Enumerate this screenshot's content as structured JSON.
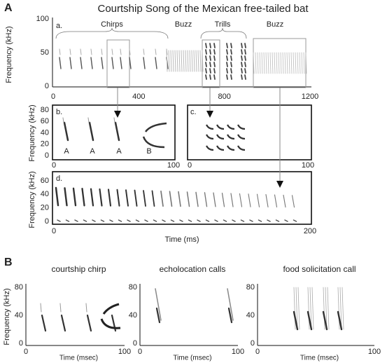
{
  "panel_a": {
    "label": "A",
    "title": "Courtship Song of the Mexican free-tailed bat",
    "overview": {
      "sublabel": "a.",
      "y_label": "Frequency (kHz)",
      "y_ticks": [
        0,
        50,
        100
      ],
      "x_ticks": [
        0,
        400,
        800,
        1200
      ],
      "segments": [
        "Chirps",
        "Buzz",
        "Trills",
        "Buzz"
      ]
    },
    "chirps": {
      "sublabel": "b.",
      "y_label": "Frequency (kHz)",
      "y_ticks": [
        0,
        20,
        40,
        60,
        80
      ],
      "x_ticks": [
        0,
        100
      ],
      "syllables": [
        "A",
        "A",
        "A",
        "B"
      ]
    },
    "trills": {
      "sublabel": "c.",
      "x_ticks": [
        0,
        100
      ]
    },
    "buzz": {
      "sublabel": "d.",
      "y_label": "Frequency (kHz)",
      "y_ticks": [
        0,
        20,
        40,
        60
      ],
      "x_ticks": [
        0,
        200
      ],
      "x_label": "Time (ms)"
    }
  },
  "panel_b": {
    "label": "B",
    "y_label": "Frequency (kHz)",
    "plots": [
      {
        "title": "courtship chirp",
        "y_ticks": [
          0,
          40,
          80
        ],
        "x_ticks": [
          0,
          100
        ],
        "x_label": "Time (msec)"
      },
      {
        "title": "echolocation calls",
        "y_ticks": [
          0,
          40,
          80
        ],
        "x_ticks": [
          0,
          100
        ],
        "x_label": "Time (msec)"
      },
      {
        "title": "food solicitation call",
        "y_ticks": [
          0,
          40,
          80
        ],
        "x_ticks": [
          0,
          100
        ],
        "x_label": "Time (msec)"
      }
    ]
  }
}
